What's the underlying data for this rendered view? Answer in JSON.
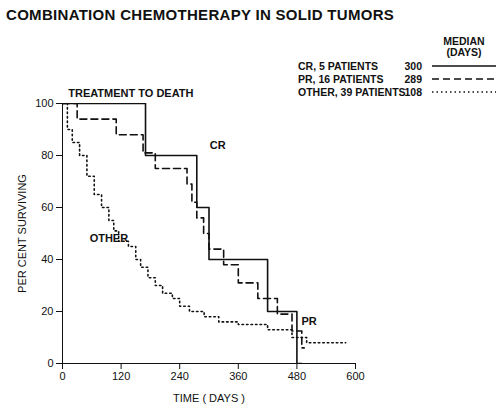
{
  "chart_data": {
    "type": "line",
    "title": "COMBINATION CHEMOTHERAPY IN SOLID TUMORS",
    "x_label": "TIME ( DAYS )",
    "y_label": "PER CENT SURVIVING",
    "xlim": [
      0,
      600
    ],
    "xticks": [
      0,
      120,
      240,
      360,
      480,
      600
    ],
    "ylim": [
      0,
      100
    ],
    "yticks": [
      0,
      20,
      40,
      60,
      80,
      100
    ],
    "legend": "top-right",
    "legend_title": [
      "MEDIAN",
      "(DAYS)"
    ],
    "annotations": [
      {
        "text": "TREATMENT TO DEATH",
        "x": 140,
        "y": 104
      },
      {
        "text": "CR",
        "x": 318,
        "y": 84
      },
      {
        "text": "OTHER",
        "x": 95,
        "y": 48
      },
      {
        "text": "PR",
        "x": 505,
        "y": 16
      }
    ],
    "series": [
      {
        "name": "CR, 5 PATIENTS",
        "median": 300,
        "color": "#111111",
        "line_style": "solid",
        "x": [
          0,
          170,
          275,
          300,
          420,
          480,
          490
        ],
        "values": [
          100,
          80,
          60,
          40,
          20,
          0,
          0
        ]
      },
      {
        "name": "PR, 16 PATIENTS",
        "median": 289,
        "color": "#111111",
        "line_style": "dashed",
        "x": [
          0,
          30,
          110,
          165,
          190,
          255,
          265,
          275,
          289,
          300,
          330,
          360,
          400,
          440,
          470,
          490,
          495
        ],
        "values": [
          100,
          94,
          88,
          81,
          75,
          69,
          62,
          56,
          50,
          44,
          38,
          31,
          25,
          19,
          12.5,
          6,
          6
        ]
      },
      {
        "name": "OTHER, 39 PATIENTS",
        "median": 108,
        "color": "#111111",
        "line_style": "dotted",
        "x": [
          0,
          10,
          20,
          35,
          50,
          65,
          80,
          95,
          105,
          115,
          135,
          150,
          160,
          175,
          190,
          205,
          225,
          240,
          260,
          290,
          320,
          360,
          420,
          470,
          500,
          580
        ],
        "values": [
          100,
          90,
          85,
          80,
          72,
          65,
          60,
          55,
          51,
          47,
          45,
          40,
          37,
          33,
          30,
          27,
          25,
          22,
          20,
          18,
          16,
          15,
          13,
          10,
          8,
          8
        ]
      }
    ]
  }
}
